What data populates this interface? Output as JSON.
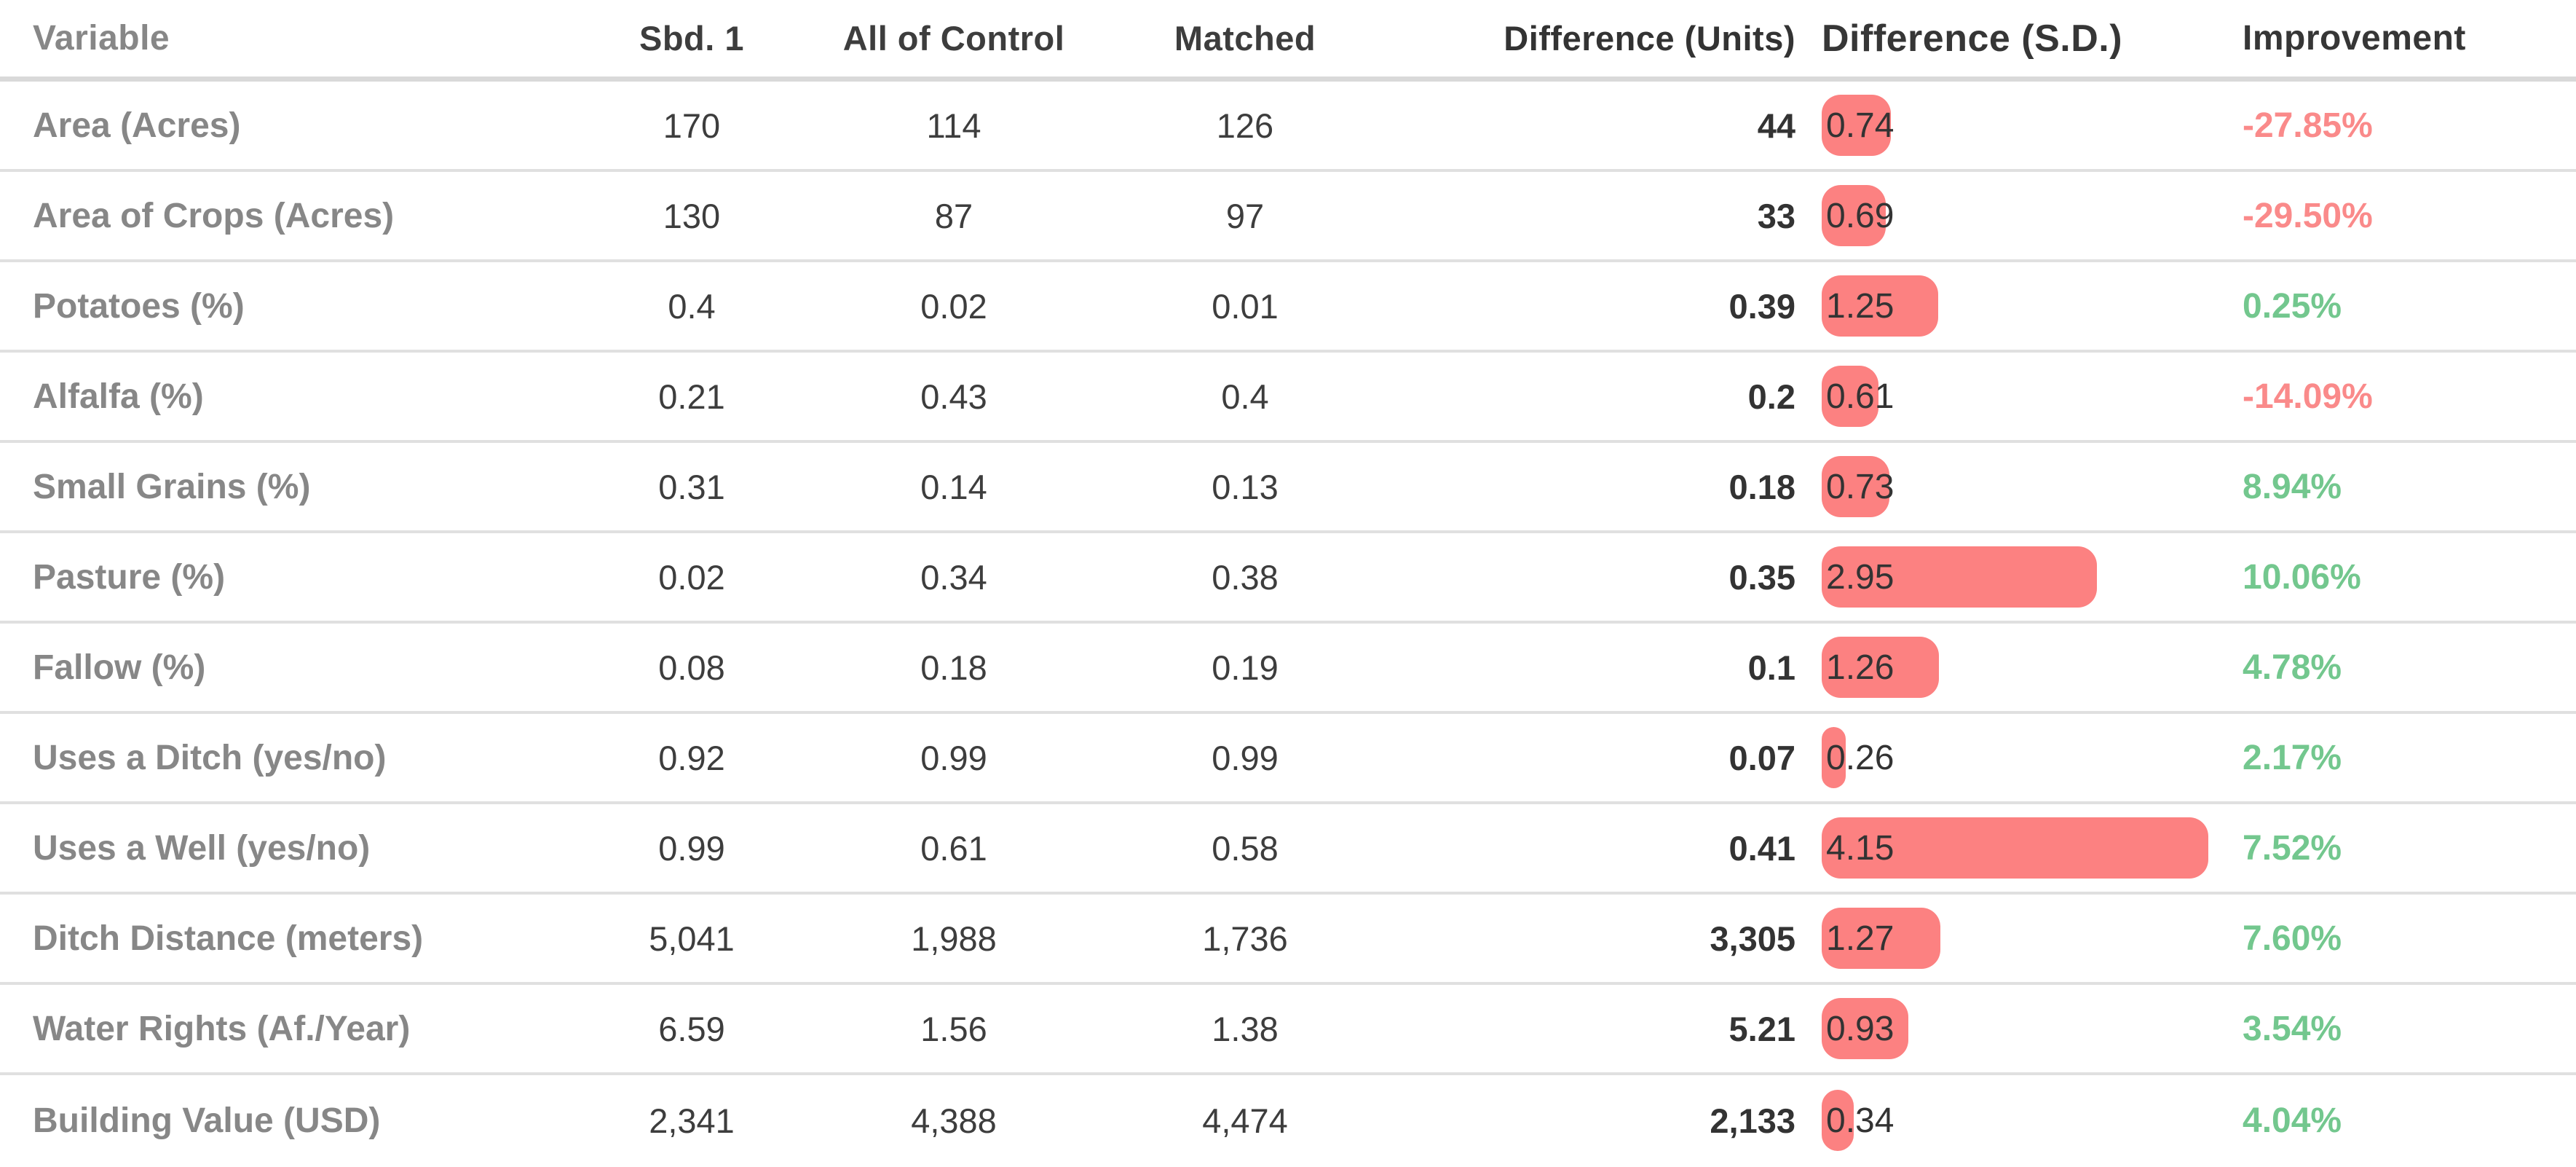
{
  "chart_data": {
    "type": "table",
    "columns": [
      "Variable",
      "Sbd. 1",
      "All of Control",
      "Matched",
      "Difference (Units)",
      "Difference (S.D.)",
      "Improvement"
    ],
    "rows": [
      {
        "variable": "Area (Acres)",
        "sbd1": "170",
        "all_of_control": "114",
        "matched": "126",
        "difference_units": "44",
        "difference_sd": 0.74,
        "improvement": "-27.85%"
      },
      {
        "variable": "Area of Crops (Acres)",
        "sbd1": "130",
        "all_of_control": "87",
        "matched": "97",
        "difference_units": "33",
        "difference_sd": 0.69,
        "improvement": "-29.50%"
      },
      {
        "variable": "Potatoes (%)",
        "sbd1": "0.4",
        "all_of_control": "0.02",
        "matched": "0.01",
        "difference_units": "0.39",
        "difference_sd": 1.25,
        "improvement": "0.25%"
      },
      {
        "variable": "Alfalfa (%)",
        "sbd1": "0.21",
        "all_of_control": "0.43",
        "matched": "0.4",
        "difference_units": "0.2",
        "difference_sd": 0.61,
        "improvement": "-14.09%"
      },
      {
        "variable": "Small Grains (%)",
        "sbd1": "0.31",
        "all_of_control": "0.14",
        "matched": "0.13",
        "difference_units": "0.18",
        "difference_sd": 0.73,
        "improvement": "8.94%"
      },
      {
        "variable": "Pasture (%)",
        "sbd1": "0.02",
        "all_of_control": "0.34",
        "matched": "0.38",
        "difference_units": "0.35",
        "difference_sd": 2.95,
        "improvement": "10.06%"
      },
      {
        "variable": "Fallow (%)",
        "sbd1": "0.08",
        "all_of_control": "0.18",
        "matched": "0.19",
        "difference_units": "0.1",
        "difference_sd": 1.26,
        "improvement": "4.78%"
      },
      {
        "variable": "Uses a Ditch (yes/no)",
        "sbd1": "0.92",
        "all_of_control": "0.99",
        "matched": "0.99",
        "difference_units": "0.07",
        "difference_sd": 0.26,
        "improvement": "2.17%"
      },
      {
        "variable": "Uses a Well (yes/no)",
        "sbd1": "0.99",
        "all_of_control": "0.61",
        "matched": "0.58",
        "difference_units": "0.41",
        "difference_sd": 4.15,
        "improvement": "7.52%"
      },
      {
        "variable": "Ditch Distance (meters)",
        "sbd1": "5,041",
        "all_of_control": "1,988",
        "matched": "1,736",
        "difference_units": "3,305",
        "difference_sd": 1.27,
        "improvement": "7.60%"
      },
      {
        "variable": "Water Rights (Af./Year)",
        "sbd1": "6.59",
        "all_of_control": "1.56",
        "matched": "1.38",
        "difference_units": "5.21",
        "difference_sd": 0.93,
        "improvement": "3.54%"
      },
      {
        "variable": "Building Value (USD)",
        "sbd1": "2,341",
        "all_of_control": "4,388",
        "matched": "4,474",
        "difference_units": "2,133",
        "difference_sd": 0.34,
        "improvement": "4.04%"
      }
    ],
    "colors": {
      "bar": "#fc8181",
      "improvement_positive": "#73c78e",
      "improvement_negative": "#fa8a8a"
    },
    "layout_hints": {
      "sd_column_rendering": "horizontal bar proportional to difference_sd with value overlaid",
      "improvement_coloring": "red when negative, green when positive",
      "grid": "horizontal row separators only"
    }
  }
}
